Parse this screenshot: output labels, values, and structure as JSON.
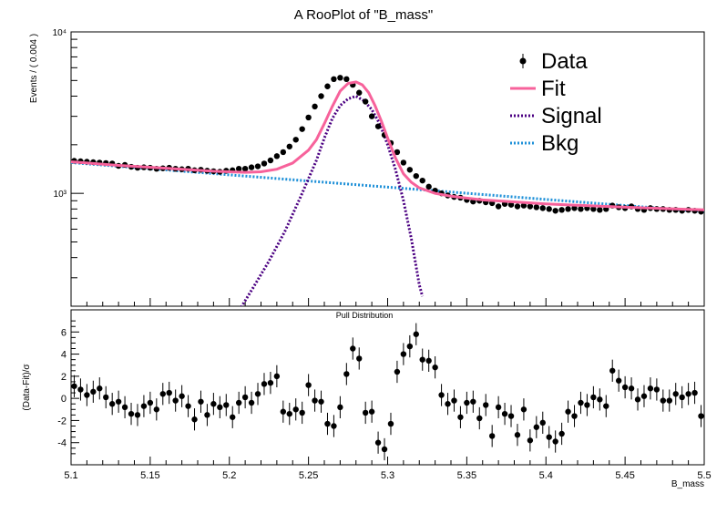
{
  "title": "A RooPlot of \"B_mass\"",
  "top_ylabel": "Events / ( 0.004 )",
  "pull_title": "Pull Distribution",
  "pull_ylabel": "(Data-Fit)/σ",
  "xlabel": "B_mass",
  "legend": [
    {
      "label": "Data",
      "style": "marker",
      "color": "#000000"
    },
    {
      "label": "Fit",
      "style": "solid",
      "color": "#f7629b"
    },
    {
      "label": "Signal",
      "style": "dotted",
      "color": "#4b0082"
    },
    {
      "label": "Bkg",
      "style": "dotted",
      "color": "#1e90d8"
    }
  ],
  "chart_data": [
    {
      "type": "line",
      "title": "A RooPlot of \"B_mass\"",
      "xlabel": "B_mass",
      "ylabel": "Events / ( 0.004 )",
      "xlim": [
        5.1,
        5.5
      ],
      "ylim": [
        200,
        10000
      ],
      "log_y": true,
      "y_tick_labels": [
        "10³",
        "10⁴"
      ],
      "x": [
        5.102,
        5.106,
        5.11,
        5.114,
        5.118,
        5.122,
        5.126,
        5.13,
        5.134,
        5.138,
        5.142,
        5.146,
        5.15,
        5.154,
        5.158,
        5.162,
        5.166,
        5.17,
        5.174,
        5.178,
        5.182,
        5.186,
        5.19,
        5.194,
        5.198,
        5.202,
        5.206,
        5.21,
        5.214,
        5.218,
        5.222,
        5.226,
        5.23,
        5.234,
        5.238,
        5.242,
        5.246,
        5.25,
        5.254,
        5.258,
        5.262,
        5.266,
        5.27,
        5.274,
        5.278,
        5.282,
        5.286,
        5.29,
        5.294,
        5.298,
        5.302,
        5.306,
        5.31,
        5.314,
        5.318,
        5.322,
        5.326,
        5.33,
        5.334,
        5.338,
        5.342,
        5.346,
        5.35,
        5.354,
        5.358,
        5.362,
        5.366,
        5.37,
        5.374,
        5.378,
        5.382,
        5.386,
        5.39,
        5.394,
        5.398,
        5.402,
        5.406,
        5.41,
        5.414,
        5.418,
        5.422,
        5.426,
        5.43,
        5.434,
        5.438,
        5.442,
        5.446,
        5.45,
        5.454,
        5.458,
        5.462,
        5.466,
        5.47,
        5.474,
        5.478,
        5.482,
        5.486,
        5.49,
        5.494,
        5.498
      ],
      "series": [
        {
          "name": "Data",
          "style": "points",
          "values": [
            1590,
            1580,
            1570,
            1560,
            1550,
            1540,
            1530,
            1480,
            1500,
            1460,
            1440,
            1450,
            1440,
            1420,
            1430,
            1440,
            1420,
            1410,
            1420,
            1390,
            1400,
            1380,
            1370,
            1360,
            1380,
            1390,
            1420,
            1420,
            1450,
            1470,
            1530,
            1600,
            1700,
            1800,
            1950,
            2150,
            2500,
            2950,
            3450,
            4000,
            4600,
            5100,
            5200,
            5100,
            4700,
            4200,
            3700,
            3000,
            2600,
            2300,
            2050,
            1800,
            1550,
            1400,
            1280,
            1200,
            1100,
            1040,
            1000,
            970,
            950,
            940,
            910,
            890,
            900,
            880,
            870,
            830,
            860,
            850,
            830,
            840,
            830,
            820,
            810,
            800,
            780,
            790,
            800,
            810,
            800,
            810,
            800,
            790,
            800,
            840,
            820,
            810,
            830,
            800,
            790,
            810,
            800,
            800,
            790,
            790,
            780,
            790,
            780,
            770
          ]
        },
        {
          "name": "Fit",
          "style": "solid",
          "x": [
            5.1,
            5.13,
            5.16,
            5.19,
            5.21,
            5.22,
            5.23,
            5.24,
            5.25,
            5.255,
            5.26,
            5.265,
            5.27,
            5.275,
            5.28,
            5.284,
            5.288,
            5.292,
            5.296,
            5.3,
            5.305,
            5.31,
            5.315,
            5.32,
            5.33,
            5.34,
            5.36,
            5.4,
            5.45,
            5.5
          ],
          "values": [
            1570,
            1490,
            1430,
            1370,
            1350,
            1360,
            1410,
            1540,
            1850,
            2150,
            2700,
            3450,
            4300,
            4800,
            4900,
            4700,
            4200,
            3500,
            2800,
            2200,
            1650,
            1320,
            1170,
            1080,
            1000,
            960,
            910,
            860,
            820,
            790
          ]
        },
        {
          "name": "Signal",
          "style": "dotted",
          "x": [
            5.205,
            5.215,
            5.225,
            5.235,
            5.245,
            5.255,
            5.26,
            5.265,
            5.27,
            5.275,
            5.28,
            5.285,
            5.29,
            5.295,
            5.3,
            5.305,
            5.31,
            5.315,
            5.32,
            5.322
          ],
          "values": [
            180,
            260,
            380,
            580,
            950,
            1600,
            2200,
            2900,
            3500,
            3850,
            4000,
            3750,
            3300,
            2700,
            2000,
            1400,
            900,
            520,
            270,
            230
          ]
        },
        {
          "name": "Bkg",
          "style": "dotted",
          "x": [
            5.1,
            5.5
          ],
          "values": [
            1550,
            770
          ]
        }
      ]
    },
    {
      "type": "scatter",
      "title": "Pull Distribution",
      "xlabel": "B_mass",
      "ylabel": "(Data-Fit)/σ",
      "xlim": [
        5.1,
        5.5
      ],
      "ylim": [
        -6,
        8
      ],
      "x_ticks": [
        5.1,
        5.15,
        5.2,
        5.25,
        5.3,
        5.35,
        5.4,
        5.45,
        5.5
      ],
      "x_tick_labels": [
        "5.1",
        "5.15",
        "5.2",
        "5.25",
        "5.3",
        "5.35",
        "5.4",
        "5.45",
        "5.5"
      ],
      "y_ticks": [
        -4,
        -2,
        0,
        2,
        4,
        6
      ],
      "error": 1.0,
      "x": [
        5.102,
        5.106,
        5.11,
        5.114,
        5.118,
        5.122,
        5.126,
        5.13,
        5.134,
        5.138,
        5.142,
        5.146,
        5.15,
        5.154,
        5.158,
        5.162,
        5.166,
        5.17,
        5.174,
        5.178,
        5.182,
        5.186,
        5.19,
        5.194,
        5.198,
        5.202,
        5.206,
        5.21,
        5.214,
        5.218,
        5.222,
        5.226,
        5.23,
        5.234,
        5.238,
        5.242,
        5.246,
        5.25,
        5.254,
        5.258,
        5.262,
        5.266,
        5.27,
        5.274,
        5.278,
        5.282,
        5.286,
        5.29,
        5.294,
        5.298,
        5.302,
        5.306,
        5.31,
        5.314,
        5.318,
        5.322,
        5.326,
        5.33,
        5.334,
        5.338,
        5.342,
        5.346,
        5.35,
        5.354,
        5.358,
        5.362,
        5.366,
        5.37,
        5.374,
        5.378,
        5.382,
        5.386,
        5.39,
        5.394,
        5.398,
        5.402,
        5.406,
        5.41,
        5.414,
        5.418,
        5.422,
        5.426,
        5.43,
        5.434,
        5.438,
        5.442,
        5.446,
        5.45,
        5.454,
        5.458,
        5.462,
        5.466,
        5.47,
        5.474,
        5.478,
        5.482,
        5.486,
        5.49,
        5.494,
        5.498
      ],
      "values": [
        1.1,
        0.8,
        0.3,
        0.6,
        0.9,
        0.1,
        -0.5,
        -0.3,
        -0.8,
        -1.4,
        -1.5,
        -0.7,
        -0.4,
        -1.0,
        0.4,
        0.5,
        -0.2,
        0.2,
        -0.7,
        -1.9,
        -0.3,
        -1.5,
        -0.5,
        -0.8,
        -0.6,
        -1.7,
        -0.4,
        0.1,
        -0.4,
        0.4,
        1.3,
        1.4,
        2.0,
        -1.2,
        -1.4,
        -1.0,
        -1.3,
        1.2,
        -0.2,
        -0.3,
        -2.3,
        -2.5,
        -0.8,
        2.2,
        4.5,
        3.6,
        -1.3,
        -1.2,
        -4.0,
        -4.6,
        -2.3,
        2.4,
        4.0,
        4.7,
        5.8,
        3.5,
        3.4,
        2.8,
        0.3,
        -0.5,
        -0.2,
        -1.7,
        -0.4,
        -0.3,
        -1.8,
        -0.6,
        -3.4,
        -0.8,
        -1.4,
        -1.6,
        -3.3,
        -1.0,
        -3.8,
        -2.6,
        -2.2,
        -3.5,
        -3.9,
        -3.2,
        -1.2,
        -1.6,
        -0.4,
        -0.6,
        0.1,
        -0.1,
        -0.7,
        2.5,
        1.6,
        1.0,
        0.9,
        -0.1,
        0.2,
        0.9,
        0.8,
        -0.2,
        -0.2,
        0.4,
        0.1,
        0.4,
        0.5,
        -1.6
      ]
    }
  ]
}
